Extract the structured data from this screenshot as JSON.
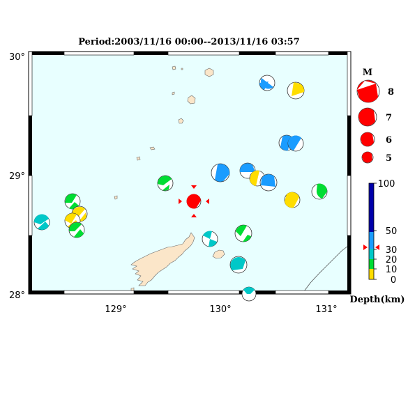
{
  "title": "Period:2003/11/16 00:00--2013/11/16 03:57",
  "axes": {
    "lat_labels": [
      "30°",
      "29°",
      "28°"
    ],
    "lon_labels": [
      "129°",
      "130°",
      "131°"
    ]
  },
  "colors": {
    "sea": "#e8ffff",
    "land": "#fbe6c9",
    "depth_0_10": "#ffdd00",
    "depth_10_30": "#00dd33",
    "depth_30_50": "#00c8c8",
    "depth_50_100": "#1a9cff",
    "depth_deep": "#0000aa",
    "main_shock": "#ff0000"
  },
  "magnitude_legend": {
    "title": "M",
    "entries": [
      {
        "label": "8",
        "magnitude": 8
      },
      {
        "label": "7",
        "magnitude": 7
      },
      {
        "label": "6",
        "magnitude": 6
      },
      {
        "label": "5",
        "magnitude": 5
      }
    ]
  },
  "depth_legend": {
    "title": "Depth(km)",
    "ticks": [
      "100",
      "50",
      "30",
      "20",
      "10",
      "0"
    ]
  },
  "events": [
    {
      "id": "ev-1",
      "depth_class": "depth_50_100",
      "mag": 5.0
    },
    {
      "id": "ev-2",
      "depth_class": "depth_0_10",
      "mag": 5.0
    },
    {
      "id": "ev-3",
      "depth_class": "depth_50_100",
      "mag": 5.3
    },
    {
      "id": "ev-4",
      "depth_class": "depth_50_100",
      "mag": 5.3
    },
    {
      "id": "ev-5",
      "depth_class": "depth_50_100",
      "mag": 5.6
    },
    {
      "id": "ev-6",
      "depth_class": "depth_50_100",
      "mag": 5.0
    },
    {
      "id": "ev-7",
      "depth_class": "depth_0_10",
      "mag": 5.0
    },
    {
      "id": "ev-8",
      "depth_class": "depth_50_100",
      "mag": 5.2
    },
    {
      "id": "ev-9",
      "depth_class": "depth_10_30",
      "mag": 5.1
    },
    {
      "id": "ev-10",
      "depth_class": "depth_10_30",
      "mag": 5.1
    },
    {
      "id": "ev-11",
      "depth_class": "main_shock",
      "mag": 5.1
    },
    {
      "id": "ev-12",
      "depth_class": "depth_0_10",
      "mag": 5.0
    },
    {
      "id": "ev-13",
      "depth_class": "depth_10_30",
      "mag": 5.0
    },
    {
      "id": "ev-14",
      "depth_class": "depth_0_10",
      "mag": 5.0
    },
    {
      "id": "ev-15",
      "depth_class": "depth_0_10",
      "mag": 5.1
    },
    {
      "id": "ev-16",
      "depth_class": "depth_10_30",
      "mag": 5.1
    },
    {
      "id": "ev-17",
      "depth_class": "depth_30_50",
      "mag": 5.0
    },
    {
      "id": "ev-18",
      "depth_class": "depth_30_50",
      "mag": 5.0
    },
    {
      "id": "ev-19",
      "depth_class": "depth_10_30",
      "mag": 5.2
    },
    {
      "id": "ev-20",
      "depth_class": "depth_0_10",
      "mag": 5.0
    },
    {
      "id": "ev-21",
      "depth_class": "depth_30_50",
      "mag": 5.3
    },
    {
      "id": "ev-22",
      "depth_class": "depth_30_50",
      "mag": 5.0
    }
  ]
}
